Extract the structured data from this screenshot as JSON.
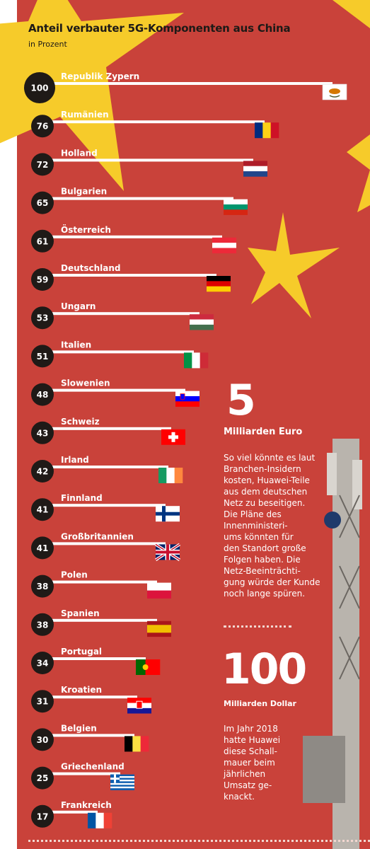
{
  "title": "Anteil verbauter 5G-Komponenten aus China",
  "subtitle": "in Prozent",
  "colors": {
    "background_red": "#c9423a",
    "star_yellow": "#f6cb2a",
    "bar_white": "#ffffff",
    "circle_dark": "#1f1a17"
  },
  "chart_data": {
    "type": "bar",
    "orientation": "horizontal",
    "title": "Anteil verbauter 5G-Komponenten aus China",
    "subtitle": "in Prozent",
    "xlim": [
      0,
      100
    ],
    "categories": [
      "Republik Zypern",
      "Rumänien",
      "Holland",
      "Bulgarien",
      "Österreich",
      "Deutschland",
      "Ungarn",
      "Italien",
      "Slowenien",
      "Schweiz",
      "Irland",
      "Finnland",
      "Großbritannien",
      "Polen",
      "Spanien",
      "Portugal",
      "Kroatien",
      "Belgien",
      "Griechenland",
      "Frankreich"
    ],
    "values": [
      100,
      76,
      72,
      65,
      61,
      59,
      53,
      51,
      48,
      43,
      42,
      41,
      41,
      38,
      38,
      34,
      31,
      30,
      25,
      17
    ],
    "flags": [
      "cyprus-flag-icon",
      "romania-flag-icon",
      "netherlands-flag-icon",
      "bulgaria-flag-icon",
      "austria-flag-icon",
      "germany-flag-icon",
      "hungary-flag-icon",
      "italy-flag-icon",
      "slovenia-flag-icon",
      "switzerland-flag-icon",
      "ireland-flag-icon",
      "finland-flag-icon",
      "uk-flag-icon",
      "poland-flag-icon",
      "spain-flag-icon",
      "portugal-flag-icon",
      "croatia-flag-icon",
      "belgium-flag-icon",
      "greece-flag-icon",
      "france-flag-icon"
    ]
  },
  "stats": [
    {
      "value": "5",
      "label": "Milliarden Euro",
      "text": "So viel könnte es laut\nBranchen-Insidern\nkosten, Huawei-Teile\naus dem deutschen\nNetz zu beseitigen.\nDie Pläne des\nInnenministeri-\nums könnten für\nden Standort große\nFolgen haben. Die\nNetz-Beeinträchti-\ngung würde der Kunde\nnoch lange spüren."
    },
    {
      "value": "100",
      "label": "Milliarden Dollar",
      "text": "Im Jahr 2018\nhatte Huawei\ndiese Schall-\nmauer beim\njährlichen\nUmsatz ge-\nknackt."
    }
  ]
}
